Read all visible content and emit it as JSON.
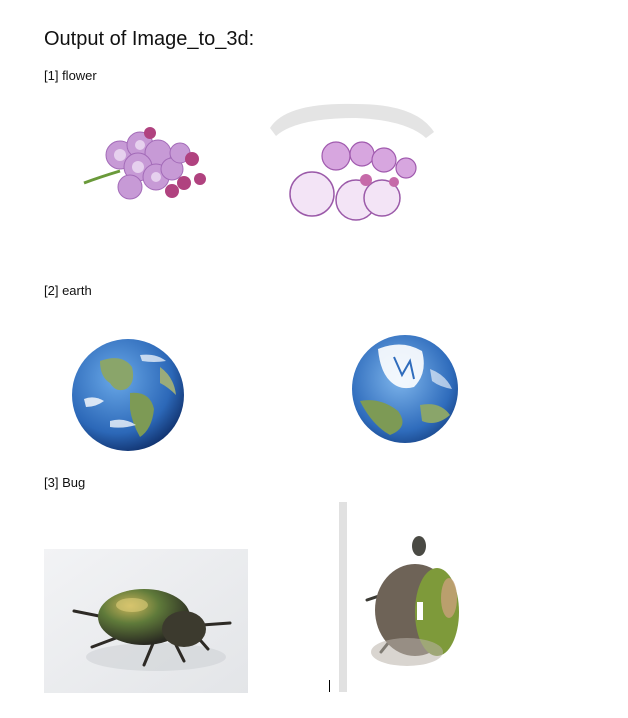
{
  "document": {
    "title": "Output of Image_to_3d:",
    "sections": [
      {
        "caption": "[1] flower"
      },
      {
        "caption": "[2] earth"
      },
      {
        "caption": "[3] Bug"
      }
    ]
  }
}
